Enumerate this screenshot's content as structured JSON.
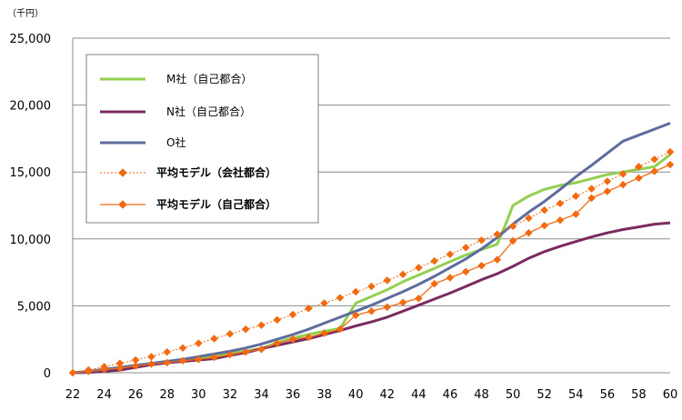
{
  "chart_data": {
    "type": "line",
    "unit_label": "（千円）",
    "ylim": [
      0,
      25000
    ],
    "xlim": [
      22,
      60
    ],
    "y_ticks": [
      0,
      5000,
      10000,
      15000,
      20000,
      25000
    ],
    "y_tick_labels": [
      "0",
      "5,000",
      "10,000",
      "15,000",
      "20,000",
      "25,000"
    ],
    "x_ticks": [
      22,
      24,
      26,
      28,
      30,
      32,
      34,
      36,
      38,
      40,
      42,
      44,
      46,
      48,
      50,
      52,
      54,
      56,
      58,
      60
    ],
    "x_tick_labels": [
      "22",
      "24",
      "26",
      "28",
      "30",
      "32",
      "34",
      "36",
      "38",
      "40",
      "42",
      "44",
      "46",
      "48",
      "50",
      "52",
      "54",
      "56",
      "58",
      "60"
    ],
    "grid": "horizontal",
    "legend_position": "top-left",
    "series": [
      {
        "name": "M社（自己都合）",
        "color": "#92d050",
        "style": "solid",
        "width": 3,
        "marker": "none",
        "points": [
          [
            22,
            0
          ],
          [
            23,
            50
          ],
          [
            24,
            200
          ],
          [
            25,
            350
          ],
          [
            26,
            500
          ],
          [
            27,
            620
          ],
          [
            28,
            750
          ],
          [
            29,
            900
          ],
          [
            30,
            1050
          ],
          [
            31,
            1250
          ],
          [
            32,
            1450
          ],
          [
            33,
            1600
          ],
          [
            34,
            1800
          ],
          [
            35,
            2250
          ],
          [
            36,
            2600
          ],
          [
            37,
            2850
          ],
          [
            38,
            3100
          ],
          [
            39,
            3300
          ],
          [
            40,
            5200
          ],
          [
            41,
            5700
          ],
          [
            42,
            6200
          ],
          [
            43,
            6800
          ],
          [
            44,
            7300
          ],
          [
            45,
            7800
          ],
          [
            46,
            8300
          ],
          [
            47,
            8800
          ],
          [
            48,
            9200
          ],
          [
            49,
            9600
          ],
          [
            49.5,
            11000
          ],
          [
            50,
            12500
          ],
          [
            51,
            13200
          ],
          [
            52,
            13700
          ],
          [
            53,
            14000
          ],
          [
            54,
            14200
          ],
          [
            55,
            14500
          ],
          [
            56,
            14800
          ],
          [
            57,
            15000
          ],
          [
            58,
            15200
          ],
          [
            59,
            15400
          ],
          [
            60,
            16300
          ]
        ]
      },
      {
        "name": "N社（自己都合）",
        "color": "#7b2c5f",
        "style": "solid",
        "width": 3,
        "marker": "none",
        "points": [
          [
            22,
            0
          ],
          [
            23,
            30
          ],
          [
            24,
            100
          ],
          [
            25,
            200
          ],
          [
            26,
            400
          ],
          [
            27,
            600
          ],
          [
            28,
            750
          ],
          [
            29,
            850
          ],
          [
            30,
            950
          ],
          [
            31,
            1050
          ],
          [
            32,
            1300
          ],
          [
            33,
            1500
          ],
          [
            34,
            1800
          ],
          [
            35,
            2050
          ],
          [
            36,
            2300
          ],
          [
            37,
            2550
          ],
          [
            38,
            2850
          ],
          [
            39,
            3150
          ],
          [
            40,
            3500
          ],
          [
            41,
            3800
          ],
          [
            42,
            4150
          ],
          [
            43,
            4600
          ],
          [
            44,
            5050
          ],
          [
            45,
            5500
          ],
          [
            46,
            5950
          ],
          [
            47,
            6450
          ],
          [
            48,
            6950
          ],
          [
            49,
            7400
          ],
          [
            50,
            7950
          ],
          [
            51,
            8550
          ],
          [
            52,
            9050
          ],
          [
            53,
            9450
          ],
          [
            54,
            9800
          ],
          [
            55,
            10150
          ],
          [
            56,
            10450
          ],
          [
            57,
            10700
          ],
          [
            58,
            10900
          ],
          [
            59,
            11100
          ],
          [
            60,
            11200
          ]
        ]
      },
      {
        "name": "O社",
        "color": "#5d6b9e",
        "style": "solid",
        "width": 3,
        "marker": "none",
        "points": [
          [
            22,
            0
          ],
          [
            23,
            100
          ],
          [
            24,
            250
          ],
          [
            25,
            400
          ],
          [
            26,
            550
          ],
          [
            27,
            700
          ],
          [
            28,
            850
          ],
          [
            29,
            1000
          ],
          [
            30,
            1200
          ],
          [
            31,
            1400
          ],
          [
            32,
            1600
          ],
          [
            33,
            1850
          ],
          [
            34,
            2150
          ],
          [
            35,
            2500
          ],
          [
            36,
            2850
          ],
          [
            37,
            3250
          ],
          [
            38,
            3700
          ],
          [
            39,
            4150
          ],
          [
            40,
            4600
          ],
          [
            41,
            5050
          ],
          [
            42,
            5550
          ],
          [
            43,
            6050
          ],
          [
            44,
            6600
          ],
          [
            45,
            7200
          ],
          [
            46,
            7850
          ],
          [
            47,
            8500
          ],
          [
            48,
            9250
          ],
          [
            49,
            10100
          ],
          [
            50,
            11100
          ],
          [
            51,
            12000
          ],
          [
            52,
            12800
          ],
          [
            53,
            13700
          ],
          [
            54,
            14650
          ],
          [
            55,
            15500
          ],
          [
            56,
            16400
          ],
          [
            57,
            17300
          ],
          [
            58,
            17750
          ],
          [
            59,
            18200
          ],
          [
            60,
            18650
          ]
        ]
      },
      {
        "name": "平均モデル（会社都合）",
        "color": "#f26a10",
        "style": "dotted",
        "width": 1,
        "marker": "diamond",
        "points": [
          [
            22,
            0
          ],
          [
            23,
            200
          ],
          [
            24,
            450
          ],
          [
            25,
            700
          ],
          [
            26,
            950
          ],
          [
            27,
            1200
          ],
          [
            28,
            1550
          ],
          [
            29,
            1850
          ],
          [
            30,
            2200
          ],
          [
            31,
            2550
          ],
          [
            32,
            2900
          ],
          [
            33,
            3250
          ],
          [
            34,
            3550
          ],
          [
            35,
            3950
          ],
          [
            36,
            4350
          ],
          [
            37,
            4800
          ],
          [
            38,
            5200
          ],
          [
            39,
            5600
          ],
          [
            40,
            6050
          ],
          [
            41,
            6450
          ],
          [
            42,
            6900
          ],
          [
            43,
            7350
          ],
          [
            44,
            7850
          ],
          [
            45,
            8350
          ],
          [
            46,
            8850
          ],
          [
            47,
            9350
          ],
          [
            48,
            9900
          ],
          [
            49,
            10350
          ],
          [
            50,
            10950
          ],
          [
            51,
            11550
          ],
          [
            52,
            12150
          ],
          [
            53,
            12650
          ],
          [
            54,
            13200
          ],
          [
            55,
            13750
          ],
          [
            56,
            14300
          ],
          [
            57,
            14850
          ],
          [
            58,
            15400
          ],
          [
            59,
            15950
          ],
          [
            60,
            16500
          ]
        ]
      },
      {
        "name": "平均モデル（自己都合）",
        "color": "#f26a10",
        "style": "solid",
        "width": 1.3,
        "marker": "diamond",
        "points": [
          [
            22,
            0
          ],
          [
            23,
            100
          ],
          [
            24,
            250
          ],
          [
            25,
            350
          ],
          [
            26,
            500
          ],
          [
            27,
            650
          ],
          [
            28,
            750
          ],
          [
            29,
            900
          ],
          [
            30,
            1000
          ],
          [
            31,
            1150
          ],
          [
            32,
            1350
          ],
          [
            33,
            1550
          ],
          [
            34,
            1750
          ],
          [
            35,
            2200
          ],
          [
            36,
            2500
          ],
          [
            37,
            2650
          ],
          [
            38,
            2950
          ],
          [
            39,
            3250
          ],
          [
            40,
            4300
          ],
          [
            41,
            4600
          ],
          [
            42,
            4900
          ],
          [
            43,
            5250
          ],
          [
            44,
            5550
          ],
          [
            45,
            6650
          ],
          [
            46,
            7100
          ],
          [
            47,
            7550
          ],
          [
            48,
            8000
          ],
          [
            49,
            8450
          ],
          [
            50,
            9850
          ],
          [
            51,
            10450
          ],
          [
            52,
            11000
          ],
          [
            53,
            11400
          ],
          [
            54,
            11850
          ],
          [
            55,
            13050
          ],
          [
            56,
            13550
          ],
          [
            57,
            14050
          ],
          [
            58,
            14550
          ],
          [
            59,
            15050
          ],
          [
            60,
            15550
          ]
        ]
      }
    ]
  }
}
